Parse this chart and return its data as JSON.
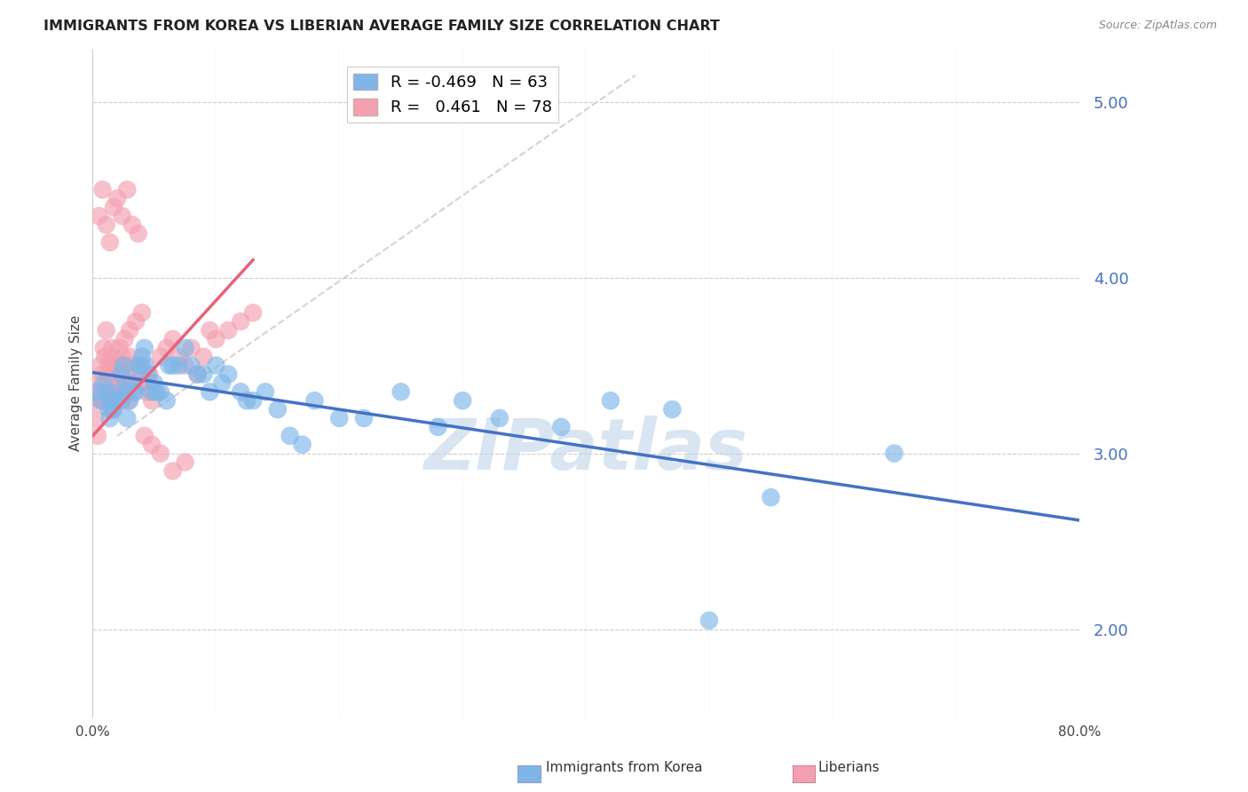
{
  "title": "IMMIGRANTS FROM KOREA VS LIBERIAN AVERAGE FAMILY SIZE CORRELATION CHART",
  "source": "Source: ZipAtlas.com",
  "ylabel": "Average Family Size",
  "xlim": [
    0.0,
    0.8
  ],
  "ylim": [
    1.5,
    5.3
  ],
  "yticks": [
    2.0,
    3.0,
    4.0,
    5.0
  ],
  "legend_korea_r": "-0.469",
  "legend_korea_n": "63",
  "legend_liberia_r": "0.461",
  "legend_liberia_n": "78",
  "korea_color": "#7EB6E8",
  "liberia_color": "#F4A0B0",
  "korea_line_color": "#4472C4",
  "liberia_line_color": "#E8627A",
  "background_color": "#FFFFFF",
  "watermark": "ZIPatlas",
  "watermark_color": "#C0D4E8",
  "title_fontsize": 11.5,
  "ytick_color": "#4472C4",
  "korea_scatter_x": [
    0.005,
    0.007,
    0.009,
    0.011,
    0.013,
    0.015,
    0.017,
    0.019,
    0.021,
    0.023,
    0.025,
    0.027,
    0.03,
    0.032,
    0.035,
    0.038,
    0.04,
    0.042,
    0.045,
    0.048,
    0.05,
    0.055,
    0.06,
    0.065,
    0.07,
    0.08,
    0.085,
    0.09,
    0.1,
    0.11,
    0.12,
    0.13,
    0.14,
    0.15,
    0.16,
    0.17,
    0.18,
    0.2,
    0.22,
    0.25,
    0.28,
    0.3,
    0.33,
    0.38,
    0.42,
    0.47,
    0.5,
    0.55,
    0.65,
    0.014,
    0.016,
    0.02,
    0.024,
    0.028,
    0.033,
    0.037,
    0.043,
    0.052,
    0.062,
    0.075,
    0.095,
    0.105,
    0.125
  ],
  "korea_scatter_y": [
    3.35,
    3.3,
    3.4,
    3.35,
    3.25,
    3.3,
    3.25,
    3.3,
    3.35,
    3.45,
    3.5,
    3.35,
    3.3,
    3.4,
    3.35,
    3.5,
    3.55,
    3.6,
    3.45,
    3.35,
    3.4,
    3.35,
    3.3,
    3.5,
    3.5,
    3.5,
    3.45,
    3.45,
    3.5,
    3.45,
    3.35,
    3.3,
    3.35,
    3.25,
    3.1,
    3.05,
    3.3,
    3.2,
    3.2,
    3.35,
    3.15,
    3.3,
    3.2,
    3.15,
    3.3,
    3.25,
    2.05,
    2.75,
    3.0,
    3.2,
    3.25,
    3.3,
    3.3,
    3.2,
    3.35,
    3.5,
    3.5,
    3.35,
    3.5,
    3.6,
    3.35,
    3.4,
    3.3
  ],
  "liberia_scatter_x": [
    0.001,
    0.002,
    0.003,
    0.004,
    0.005,
    0.006,
    0.007,
    0.008,
    0.009,
    0.01,
    0.011,
    0.012,
    0.013,
    0.014,
    0.015,
    0.016,
    0.017,
    0.018,
    0.019,
    0.02,
    0.021,
    0.022,
    0.023,
    0.024,
    0.025,
    0.026,
    0.027,
    0.028,
    0.029,
    0.03,
    0.032,
    0.034,
    0.036,
    0.038,
    0.04,
    0.042,
    0.044,
    0.046,
    0.048,
    0.05,
    0.055,
    0.06,
    0.065,
    0.07,
    0.075,
    0.08,
    0.085,
    0.09,
    0.095,
    0.1,
    0.11,
    0.12,
    0.13,
    0.006,
    0.009,
    0.012,
    0.015,
    0.018,
    0.022,
    0.026,
    0.03,
    0.035,
    0.04,
    0.005,
    0.008,
    0.011,
    0.014,
    0.017,
    0.02,
    0.024,
    0.028,
    0.032,
    0.037,
    0.042,
    0.048,
    0.055,
    0.065,
    0.075
  ],
  "liberia_scatter_y": [
    3.3,
    3.2,
    3.35,
    3.1,
    3.4,
    3.5,
    3.3,
    3.45,
    3.6,
    3.55,
    3.7,
    3.35,
    3.4,
    3.5,
    3.25,
    3.6,
    3.5,
    3.35,
    3.4,
    3.3,
    3.5,
    3.45,
    3.3,
    3.55,
    3.4,
    3.35,
    3.5,
    3.45,
    3.3,
    3.55,
    3.4,
    3.5,
    3.45,
    3.4,
    3.5,
    3.4,
    3.35,
    3.45,
    3.3,
    3.35,
    3.55,
    3.6,
    3.65,
    3.55,
    3.5,
    3.6,
    3.45,
    3.55,
    3.7,
    3.65,
    3.7,
    3.75,
    3.8,
    3.35,
    3.3,
    3.45,
    3.55,
    3.5,
    3.6,
    3.65,
    3.7,
    3.75,
    3.8,
    4.35,
    4.5,
    4.3,
    4.2,
    4.4,
    4.45,
    4.35,
    4.5,
    4.3,
    4.25,
    3.1,
    3.05,
    3.0,
    2.9,
    2.95
  ],
  "korea_trend_x": [
    0.0,
    0.8
  ],
  "korea_trend_y": [
    3.46,
    2.62
  ],
  "liberia_trend_x": [
    0.0,
    0.13
  ],
  "liberia_trend_y": [
    3.1,
    4.1
  ],
  "diag_line_x": [
    0.02,
    0.44
  ],
  "diag_line_y": [
    3.1,
    5.15
  ]
}
